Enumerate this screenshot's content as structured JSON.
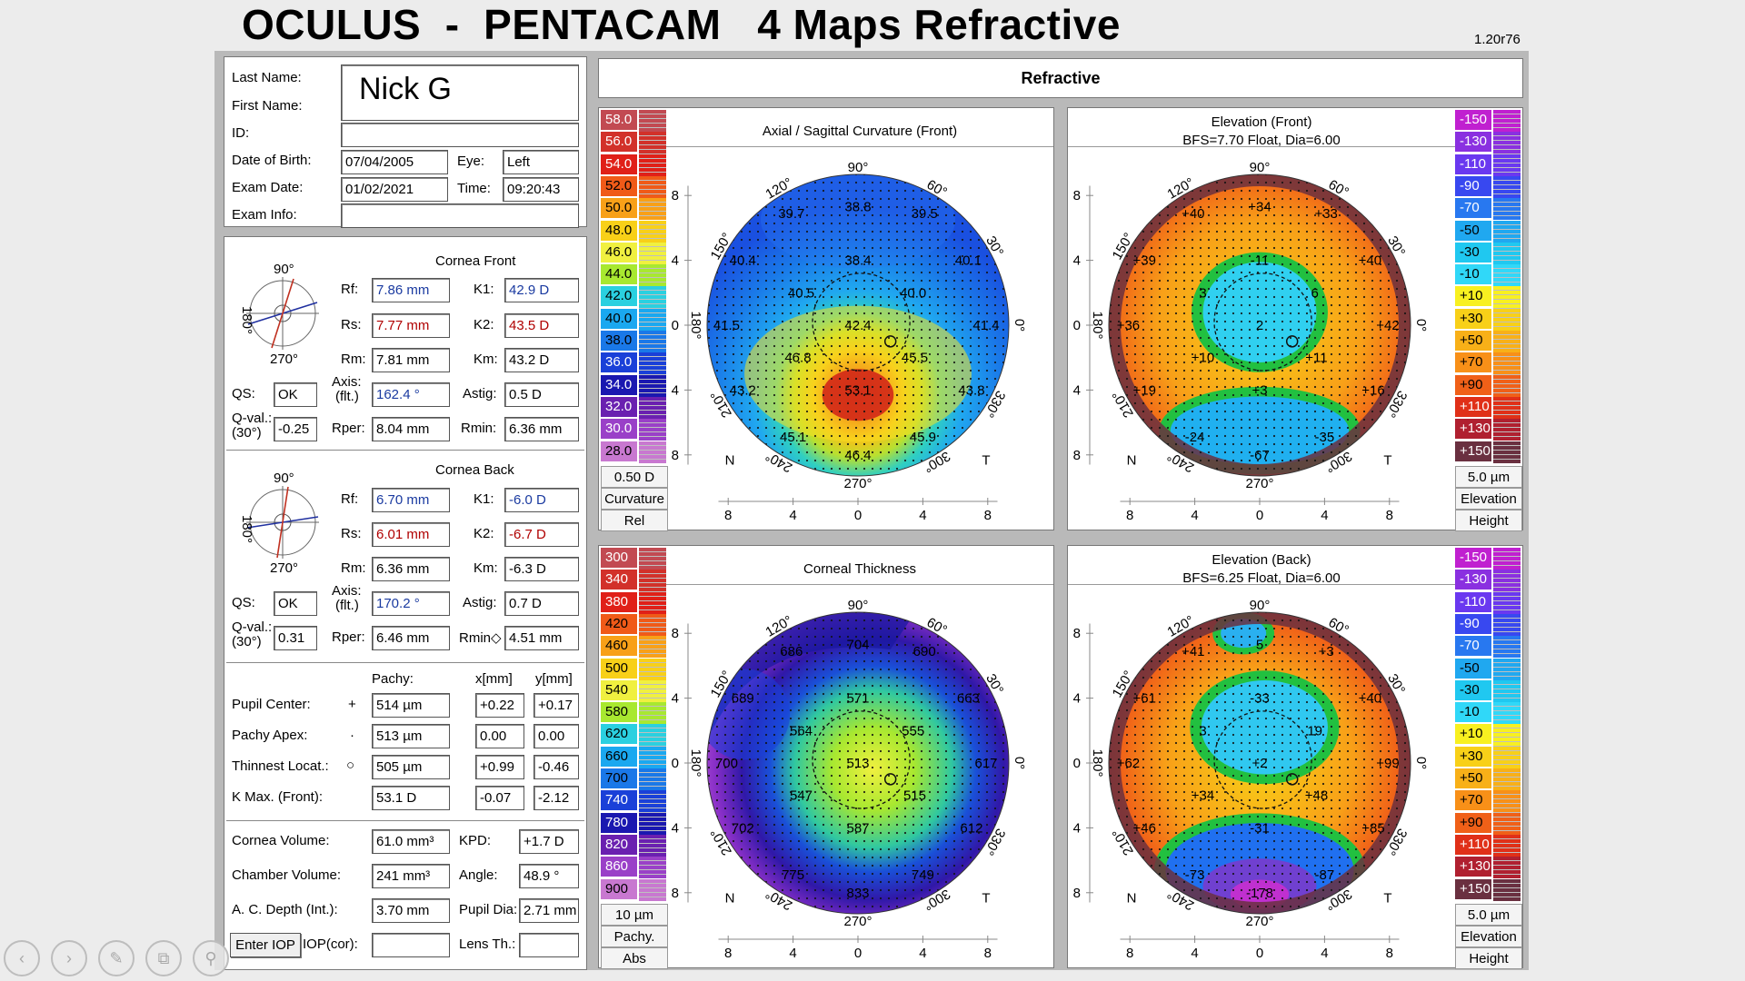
{
  "header": {
    "title": "OCULUS  -  PENTACAM   4 Maps Refractive",
    "version": "1.20r76"
  },
  "patient": {
    "last_name_label": "Last Name:",
    "first_name_label": "First Name:",
    "id_label": "ID:",
    "dob_label": "Date of Birth:",
    "exam_date_label": "Exam Date:",
    "exam_info_label": "Exam Info:",
    "eye_label": "Eye:",
    "time_label": "Time:",
    "name_overlay": "Nick G",
    "dob": "07/04/2005",
    "eye": "Left",
    "exam_date": "01/02/2021",
    "time": "09:20:43"
  },
  "cornea_front": {
    "title": "Cornea Front",
    "compass": {
      "top": "90°",
      "bottom": "270°",
      "left": "180°",
      "right": "0°"
    },
    "rf_label": "Rf:",
    "rf": "7.86 mm",
    "rs_label": "Rs:",
    "rs": "7.77 mm",
    "rm_label": "Rm:",
    "rm": "7.81 mm",
    "k1_label": "K1:",
    "k1": "42.9 D",
    "k2_label": "K2:",
    "k2": "43.5 D",
    "km_label": "Km:",
    "km": "43.2 D",
    "qs_label": "QS:",
    "qs": "OK",
    "axis_label": "Axis:",
    "axis_sub": "(flt.)",
    "axis": "162.4 °",
    "astig_label": "Astig:",
    "astig": "0.5 D",
    "qval_label": "Q-val.:",
    "qval_sub": "(30°)",
    "qval": "-0.25",
    "rper_label": "Rper:",
    "rper": "8.04 mm",
    "rmin_label": "Rmin:",
    "rmin": "6.36 mm"
  },
  "cornea_back": {
    "title": "Cornea Back",
    "compass": {
      "top": "90°",
      "bottom": "270°",
      "left": "180°",
      "right": "0°"
    },
    "rf_label": "Rf:",
    "rf": "6.70 mm",
    "rs_label": "Rs:",
    "rs": "6.01 mm",
    "rm_label": "Rm:",
    "rm": "6.36 mm",
    "k1_label": "K1:",
    "k1": "-6.0 D",
    "k2_label": "K2:",
    "k2": "-6.7 D",
    "km_label": "Km:",
    "km": "-6.3 D",
    "qs_label": "QS:",
    "qs": "OK",
    "axis_label": "Axis:",
    "axis_sub": "(flt.)",
    "axis": "170.2 °",
    "astig_label": "Astig:",
    "astig": "0.7 D",
    "qval_label": "Q-val.:",
    "qval_sub": "(30°)",
    "qval": "0.31",
    "rper_label": "Rper:",
    "rper": "6.46 mm",
    "rmin_label": "Rmin◇",
    "rmin": "4.51 mm"
  },
  "pachy": {
    "col_pachy": "Pachy:",
    "col_x": "x[mm]",
    "col_y": "y[mm]",
    "rows": [
      {
        "label": "Pupil Center:",
        "sym": "+",
        "pachy": "514 µm",
        "x": "+0.22",
        "y": "+0.17"
      },
      {
        "label": "Pachy Apex:",
        "sym": "·",
        "pachy": "513 µm",
        "x": "0.00",
        "y": "0.00"
      },
      {
        "label": "Thinnest Locat.:",
        "sym": "○",
        "pachy": "505 µm",
        "x": "+0.99",
        "y": "-0.46"
      },
      {
        "label": "K Max. (Front):",
        "sym": "",
        "pachy": "53.1 D",
        "x": "-0.07",
        "y": "-2.12"
      }
    ]
  },
  "volumes": {
    "cornea_volume_label": "Cornea Volume:",
    "cornea_volume": "61.0 mm³",
    "kpd_label": "KPD:",
    "kpd": "+1.7 D",
    "chamber_volume_label": "Chamber Volume:",
    "chamber_volume": "241 mm³",
    "angle_label": "Angle:",
    "angle": "48.9 °",
    "ac_depth_label": "A. C. Depth (Int.):",
    "ac_depth": "3.70 mm",
    "pupil_dia_label": "Pupil Dia:",
    "pupil_dia": "2.71 mm",
    "enter_iop_label": "Enter IOP",
    "iop_cor_label": "IOP(cor):",
    "lens_th_label": "Lens Th.:"
  },
  "refractive_header": "Refractive",
  "map_labels": {
    "deg90": "90°",
    "deg270": "270°",
    "deg180": "180°",
    "deg0": "0°",
    "deg120": "120°",
    "deg60": "60°",
    "deg150": "150°",
    "deg30": "30°",
    "deg210": "210°",
    "deg330": "330°",
    "deg240": "240°",
    "deg300": "300°",
    "nasal": "N",
    "temporal": "T",
    "yticks": [
      "8",
      "4",
      "0",
      "4",
      "8"
    ],
    "xticks": [
      "8",
      "4",
      "0",
      "4",
      "8"
    ]
  },
  "maps": [
    {
      "id": "axial",
      "title": "Axial / Sagittal Curvature (Front)",
      "subtitle": "",
      "scale_side": "left",
      "scale": [
        "58.0",
        "56.0",
        "54.0",
        "52.0",
        "50.0",
        "48.0",
        "46.0",
        "44.0",
        "42.0",
        "40.0",
        "38.0",
        "36.0",
        "34.0",
        "32.0",
        "30.0",
        "28.0"
      ],
      "scale_colors": [
        "#c24a52",
        "#d2312a",
        "#e02018",
        "#f05a18",
        "#f8a018",
        "#f8d018",
        "#f0f040",
        "#a8e830",
        "#2ad0e0",
        "#1aa8f0",
        "#1a78e8",
        "#1a40d8",
        "#1a18b0",
        "#6a20b0",
        "#9a40c8",
        "#c878d0"
      ],
      "foot": [
        "0.50 D",
        "Curvature",
        "Rel"
      ],
      "values": [
        {
          "t": "38.8",
          "x": 0,
          "y": -7.3
        },
        {
          "t": "39.7",
          "x": -4.1,
          "y": -6.9
        },
        {
          "t": "39.5",
          "x": 4.1,
          "y": -6.9
        },
        {
          "t": "38.4",
          "x": 0,
          "y": -4.0
        },
        {
          "t": "40.4",
          "x": -7.1,
          "y": -4.0
        },
        {
          "t": "40.1",
          "x": 6.8,
          "y": -4.0
        },
        {
          "t": "40.5",
          "x": -3.5,
          "y": -2.0
        },
        {
          "t": "40.0",
          "x": 3.4,
          "y": -2.0
        },
        {
          "t": "41.5",
          "x": -8.1,
          "y": 0
        },
        {
          "t": "42.4",
          "x": 0,
          "y": 0
        },
        {
          "t": "41.4",
          "x": 7.9,
          "y": 0
        },
        {
          "t": "46.8",
          "x": -3.7,
          "y": 2.0
        },
        {
          "t": "45.5",
          "x": 3.5,
          "y": 2.0
        },
        {
          "t": "43.2",
          "x": -7.1,
          "y": 4.0
        },
        {
          "t": "53.1",
          "x": 0,
          "y": 4.0
        },
        {
          "t": "43.8",
          "x": 7.0,
          "y": 4.0
        },
        {
          "t": "45.1",
          "x": -4.0,
          "y": 6.9
        },
        {
          "t": "46.4",
          "x": 0,
          "y": 8.0
        },
        {
          "t": "45.9",
          "x": 4.0,
          "y": 6.9
        }
      ]
    },
    {
      "id": "elev_front",
      "title": "Elevation (Front)",
      "subtitle": "BFS=7.70 Float, Dia=6.00",
      "scale_side": "right",
      "scale": [
        "-150",
        "-130",
        "-110",
        "-90",
        "-70",
        "-50",
        "-30",
        "-10",
        "+10",
        "+30",
        "+50",
        "+70",
        "+90",
        "+110",
        "+130",
        "+150"
      ],
      "scale_colors": [
        "#c020d0",
        "#8a30e0",
        "#6a38f0",
        "#3848f0",
        "#2878f0",
        "#20a8f0",
        "#20c8f0",
        "#30d8f8",
        "#f8f020",
        "#f8d018",
        "#f8b018",
        "#f89018",
        "#f06018",
        "#e03018",
        "#b02030",
        "#6a3040"
      ],
      "foot": [
        "5.0 µm",
        "Elevation",
        "Height"
      ],
      "values": [
        {
          "t": "+34",
          "x": 0,
          "y": -7.3
        },
        {
          "t": "+40",
          "x": -4.1,
          "y": -6.9
        },
        {
          "t": "+33",
          "x": 4.1,
          "y": -6.9
        },
        {
          "t": "-11",
          "x": 0,
          "y": -4.0
        },
        {
          "t": "+39",
          "x": -7.1,
          "y": -4.0
        },
        {
          "t": "+40",
          "x": 6.8,
          "y": -4.0
        },
        {
          "t": "3",
          "x": -3.5,
          "y": -2.0
        },
        {
          "t": "6",
          "x": 3.4,
          "y": -2.0
        },
        {
          "t": "+36",
          "x": -8.1,
          "y": 0
        },
        {
          "t": "2",
          "x": 0,
          "y": 0
        },
        {
          "t": "+42",
          "x": 7.9,
          "y": 0
        },
        {
          "t": "+10",
          "x": -3.5,
          "y": 2.0
        },
        {
          "t": "+11",
          "x": 3.5,
          "y": 2.0
        },
        {
          "t": "+19",
          "x": -7.1,
          "y": 4.0
        },
        {
          "t": "+3",
          "x": 0,
          "y": 4.0
        },
        {
          "t": "+16",
          "x": 7.0,
          "y": 4.0
        },
        {
          "t": "-24",
          "x": -4.0,
          "y": 6.9
        },
        {
          "t": "-67",
          "x": 0,
          "y": 8.0
        },
        {
          "t": "-35",
          "x": 4.0,
          "y": 6.9
        }
      ]
    },
    {
      "id": "thickness",
      "title": "Corneal Thickness",
      "subtitle": "",
      "scale_side": "left",
      "scale": [
        "300",
        "340",
        "380",
        "420",
        "460",
        "500",
        "540",
        "580",
        "620",
        "660",
        "700",
        "740",
        "780",
        "820",
        "860",
        "900"
      ],
      "scale_colors": [
        "#c24a52",
        "#d2312a",
        "#e02018",
        "#f05a18",
        "#f8a018",
        "#f8d018",
        "#f0f040",
        "#a8e830",
        "#2ad0e0",
        "#1aa8f0",
        "#1a78e8",
        "#1a40d8",
        "#1a18b0",
        "#6a20b0",
        "#9a40c8",
        "#c878d0"
      ],
      "foot": [
        "10 µm",
        "Pachy.",
        "Abs"
      ],
      "values": [
        {
          "t": "704",
          "x": 0,
          "y": -7.3
        },
        {
          "t": "686",
          "x": -4.1,
          "y": -6.9
        },
        {
          "t": "690",
          "x": 4.1,
          "y": -6.9
        },
        {
          "t": "571",
          "x": 0,
          "y": -4.0
        },
        {
          "t": "689",
          "x": -7.1,
          "y": -4.0
        },
        {
          "t": "663",
          "x": 6.8,
          "y": -4.0
        },
        {
          "t": "564",
          "x": -3.5,
          "y": -2.0
        },
        {
          "t": "555",
          "x": 3.4,
          "y": -2.0
        },
        {
          "t": "700",
          "x": -8.1,
          "y": 0
        },
        {
          "t": "513",
          "x": 0,
          "y": 0
        },
        {
          "t": "617",
          "x": 7.9,
          "y": 0
        },
        {
          "t": "547",
          "x": -3.5,
          "y": 2.0
        },
        {
          "t": "515",
          "x": 3.5,
          "y": 2.0
        },
        {
          "t": "702",
          "x": -7.1,
          "y": 4.0
        },
        {
          "t": "587",
          "x": 0,
          "y": 4.0
        },
        {
          "t": "612",
          "x": 7.0,
          "y": 4.0
        },
        {
          "t": "775",
          "x": -4.0,
          "y": 6.9
        },
        {
          "t": "833",
          "x": 0,
          "y": 8.0
        },
        {
          "t": "749",
          "x": 4.0,
          "y": 6.9
        }
      ]
    },
    {
      "id": "elev_back",
      "title": "Elevation (Back)",
      "subtitle": "BFS=6.25 Float, Dia=6.00",
      "scale_side": "right",
      "scale": [
        "-150",
        "-130",
        "-110",
        "-90",
        "-70",
        "-50",
        "-30",
        "-10",
        "+10",
        "+30",
        "+50",
        "+70",
        "+90",
        "+110",
        "+130",
        "+150"
      ],
      "scale_colors": [
        "#c020d0",
        "#8a30e0",
        "#6a38f0",
        "#3848f0",
        "#2878f0",
        "#20a8f0",
        "#20c8f0",
        "#30d8f8",
        "#f8f020",
        "#f8d018",
        "#f8b018",
        "#f89018",
        "#f06018",
        "#e03018",
        "#b02030",
        "#6a3040"
      ],
      "foot": [
        "5.0 µm",
        "Elevation",
        "Height"
      ],
      "values": [
        {
          "t": "5",
          "x": 0,
          "y": -7.3
        },
        {
          "t": "+41",
          "x": -4.1,
          "y": -6.9
        },
        {
          "t": "+3",
          "x": 4.1,
          "y": -6.9
        },
        {
          "t": "-33",
          "x": 0,
          "y": -4.0
        },
        {
          "t": "+61",
          "x": -7.1,
          "y": -4.0
        },
        {
          "t": "+40",
          "x": 6.8,
          "y": -4.0
        },
        {
          "t": "3",
          "x": -3.5,
          "y": -2.0
        },
        {
          "t": "19",
          "x": 3.4,
          "y": -2.0
        },
        {
          "t": "+62",
          "x": -8.1,
          "y": 0
        },
        {
          "t": "+2",
          "x": 0,
          "y": 0
        },
        {
          "t": "+99",
          "x": 7.9,
          "y": 0
        },
        {
          "t": "+34",
          "x": -3.5,
          "y": 2.0
        },
        {
          "t": "+48",
          "x": 3.5,
          "y": 2.0
        },
        {
          "t": "+46",
          "x": -7.1,
          "y": 4.0
        },
        {
          "t": "-31",
          "x": 0,
          "y": 4.0
        },
        {
          "t": "+85",
          "x": 7.0,
          "y": 4.0
        },
        {
          "t": "-73",
          "x": -4.0,
          "y": 6.9
        },
        {
          "t": "-178",
          "x": 0,
          "y": 8.0
        },
        {
          "t": "-87",
          "x": 4.0,
          "y": 6.9
        }
      ]
    }
  ],
  "toolbar": {
    "icons": [
      "back-icon",
      "forward-icon",
      "pen-icon",
      "copy-icon",
      "zoom-icon"
    ]
  }
}
